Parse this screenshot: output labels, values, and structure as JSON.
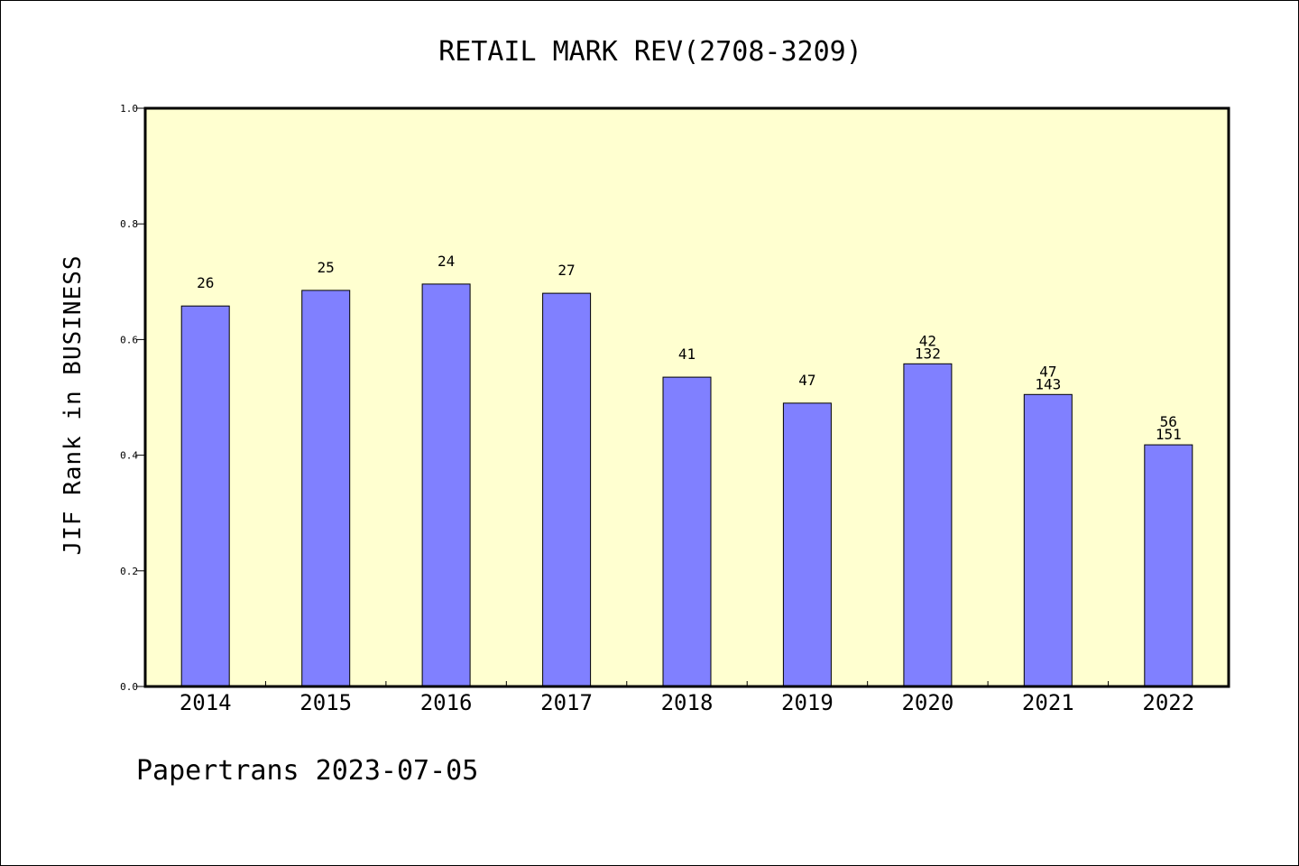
{
  "chart_data": {
    "type": "bar",
    "title": "RETAIL MARK REV(2708-3209)",
    "xlabel": "",
    "ylabel": "JIF Rank in BUSINESS",
    "ylim": [
      0,
      1.0
    ],
    "yticks": [
      "0.0",
      "0.2",
      "0.4",
      "0.6",
      "0.8",
      "1.0"
    ],
    "categories": [
      "2014",
      "2015",
      "2016",
      "2017",
      "2018",
      "2019",
      "2020",
      "2021",
      "2022"
    ],
    "values": [
      0.658,
      0.685,
      0.696,
      0.68,
      0.535,
      0.49,
      0.558,
      0.505,
      0.418
    ],
    "annotations_top": [
      "26",
      "25",
      "24",
      "27",
      "41",
      "47",
      "42",
      "47",
      "56"
    ],
    "annotations_bottom": [
      "",
      "",
      "",
      "",
      "",
      "",
      "132",
      "143",
      "151"
    ],
    "grid": false,
    "colors": {
      "plot_background": "#ffffd0",
      "bar": "#8080ff",
      "bar_edge": "#000000"
    }
  },
  "footer": "Papertrans 2023-07-05"
}
